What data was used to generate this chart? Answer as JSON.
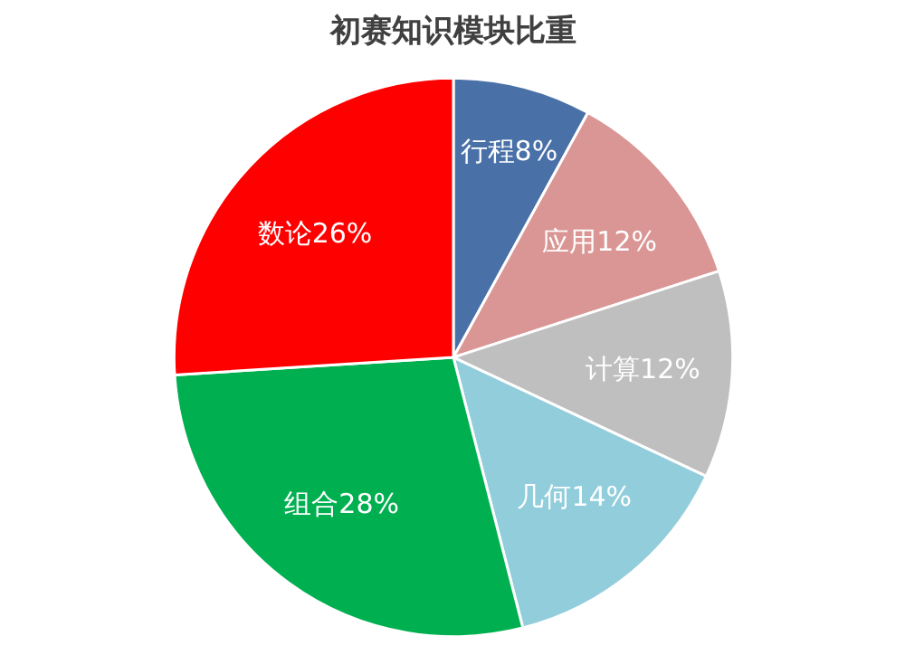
{
  "chart_data": {
    "type": "pie",
    "title": "初赛知识模块比重",
    "categories": [
      "行程",
      "应用",
      "计算",
      "几何",
      "组合",
      "数论"
    ],
    "values": [
      8,
      12,
      12,
      14,
      28,
      26
    ],
    "value_labels": [
      "8%",
      "12%",
      "12%",
      "14%",
      "28%",
      "26%"
    ],
    "colors": [
      "#4a70a8",
      "#d99694",
      "#bfbfbf",
      "#92cddc",
      "#00b050",
      "#ff0000"
    ]
  }
}
